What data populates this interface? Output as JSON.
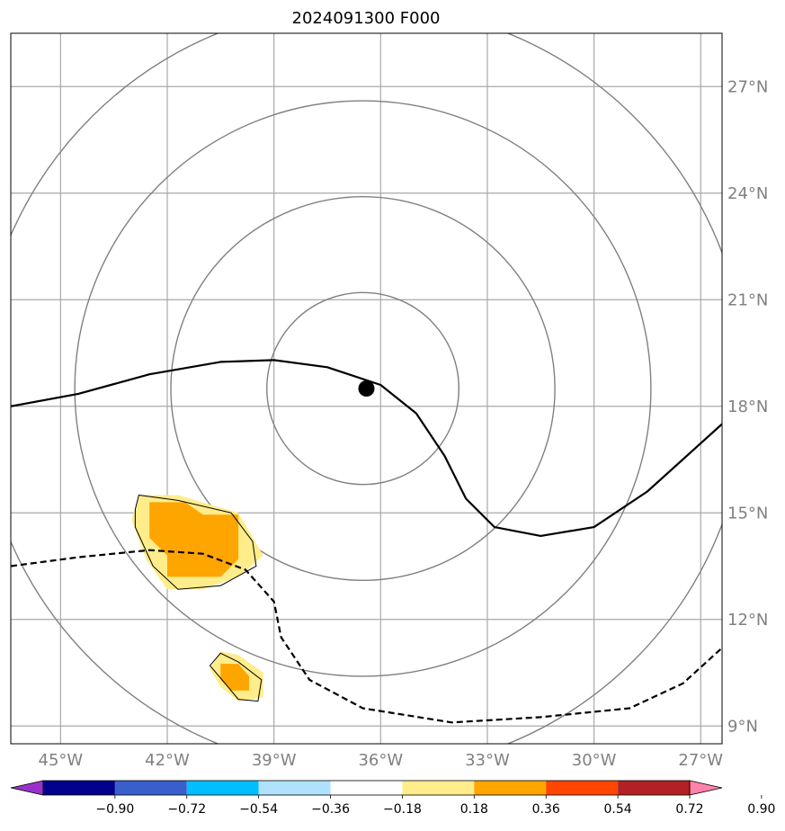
{
  "chart_data": {
    "type": "map",
    "title": "2024091300 F000",
    "center": {
      "lon": -36.5,
      "lat": 18.5
    },
    "lon_range": [
      -46.4,
      -26.4
    ],
    "lat_range": [
      8.5,
      28.5
    ],
    "lon_ticks": [
      -45,
      -42,
      -39,
      -36,
      -33,
      -30,
      -27
    ],
    "lon_tick_labels": [
      "45°W",
      "42°W",
      "39°W",
      "36°W",
      "33°W",
      "30°W",
      "27°W"
    ],
    "lat_ticks": [
      9,
      12,
      15,
      18,
      21,
      24,
      27
    ],
    "lat_tick_labels": [
      "9°N",
      "12°N",
      "15°N",
      "18°N",
      "21°N",
      "24°N",
      "27°N"
    ],
    "range_rings_deg": [
      2.7,
      5.4,
      8.1,
      10.8
    ],
    "grid": true,
    "solid_contour": [
      [
        -46.4,
        18.0
      ],
      [
        -44.5,
        18.35
      ],
      [
        -42.5,
        18.9
      ],
      [
        -40.5,
        19.25
      ],
      [
        -39.0,
        19.3
      ],
      [
        -37.5,
        19.1
      ],
      [
        -36.0,
        18.6
      ],
      [
        -35.0,
        17.8
      ],
      [
        -34.2,
        16.6
      ],
      [
        -33.6,
        15.4
      ],
      [
        -32.8,
        14.6
      ],
      [
        -31.5,
        14.35
      ],
      [
        -30.0,
        14.6
      ],
      [
        -28.5,
        15.6
      ],
      [
        -26.4,
        17.5
      ]
    ],
    "dashed_contour": [
      [
        -46.4,
        13.5
      ],
      [
        -44.5,
        13.75
      ],
      [
        -42.5,
        13.95
      ],
      [
        -41.0,
        13.85
      ],
      [
        -39.8,
        13.4
      ],
      [
        -39.0,
        12.5
      ],
      [
        -38.8,
        11.5
      ],
      [
        -38.0,
        10.3
      ],
      [
        -36.5,
        9.5
      ],
      [
        -34.0,
        9.1
      ],
      [
        -31.5,
        9.25
      ],
      [
        -29.0,
        9.5
      ],
      [
        -27.5,
        10.2
      ],
      [
        -26.4,
        11.2
      ]
    ],
    "shaded_regions": [
      {
        "level": 0.18,
        "points": [
          [
            -42.8,
            15.5
          ],
          [
            -41.7,
            15.5
          ],
          [
            -40.0,
            15.0
          ],
          [
            -39.3,
            13.8
          ],
          [
            -40.0,
            13.2
          ],
          [
            -41.0,
            12.85
          ],
          [
            -42.0,
            12.85
          ],
          [
            -42.6,
            13.7
          ],
          [
            -43.0,
            14.8
          ]
        ]
      },
      {
        "level": 0.36,
        "points": [
          [
            -42.5,
            15.3
          ],
          [
            -41.5,
            15.3
          ],
          [
            -41.0,
            14.95
          ],
          [
            -40.0,
            14.95
          ],
          [
            -40.0,
            13.7
          ],
          [
            -40.5,
            13.2
          ],
          [
            -42.0,
            13.2
          ],
          [
            -42.0,
            13.8
          ],
          [
            -42.5,
            14.3
          ]
        ]
      },
      {
        "level": 0.18,
        "points": [
          [
            -40.5,
            11.1
          ],
          [
            -40.0,
            11.0
          ],
          [
            -39.3,
            10.5
          ],
          [
            -39.3,
            9.8
          ],
          [
            -40.0,
            9.7
          ],
          [
            -40.5,
            10.1
          ],
          [
            -40.8,
            10.6
          ]
        ]
      },
      {
        "level": 0.36,
        "points": [
          [
            -40.5,
            10.75
          ],
          [
            -40.0,
            10.75
          ],
          [
            -39.7,
            10.4
          ],
          [
            -39.7,
            10.0
          ],
          [
            -40.2,
            10.0
          ],
          [
            -40.5,
            10.3
          ]
        ]
      }
    ],
    "outline_regions": [
      [
        [
          -42.8,
          15.5
        ],
        [
          -41.7,
          15.35
        ],
        [
          -40.2,
          15.0
        ],
        [
          -39.6,
          14.2
        ],
        [
          -39.5,
          13.5
        ],
        [
          -40.5,
          12.95
        ],
        [
          -41.7,
          12.85
        ],
        [
          -42.4,
          13.5
        ],
        [
          -42.9,
          14.6
        ],
        [
          -42.9,
          15.1
        ]
      ],
      [
        [
          -40.5,
          11.05
        ],
        [
          -40.0,
          10.8
        ],
        [
          -39.35,
          10.3
        ],
        [
          -39.45,
          9.7
        ],
        [
          -40.0,
          9.75
        ],
        [
          -40.5,
          10.35
        ],
        [
          -40.8,
          10.7
        ]
      ]
    ],
    "center_marker": {
      "lon": -36.4,
      "lat": 18.5
    },
    "colorbar": {
      "levels": [
        "−0.90",
        "−0.72",
        "−0.54",
        "−0.36",
        "−0.18",
        "0.18",
        "0.36",
        "0.54",
        "0.72",
        "0.90"
      ],
      "colors": [
        "#9932cc",
        "#00008b",
        "#3a5fcd",
        "#00bfff",
        "#b0e2ff",
        "#ffffff",
        "#ffec8b",
        "#ffa500",
        "#ff4500",
        "#b22222",
        "#ff82ab"
      ],
      "extend": "both"
    }
  }
}
